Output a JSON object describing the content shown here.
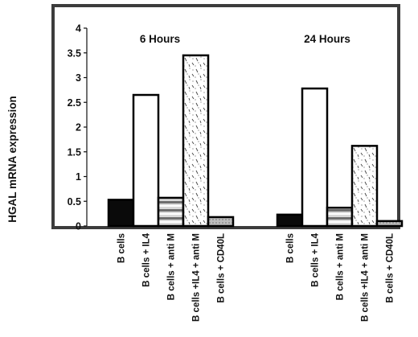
{
  "chart_data": {
    "type": "bar",
    "ylabel": "HGAL  mRNA expression",
    "ylim": [
      0,
      4
    ],
    "yticks": [
      "0",
      "0.5",
      "1",
      "1.5",
      "2",
      "2.5",
      "3",
      "3.5",
      "4"
    ],
    "groups": [
      {
        "title": "6  Hours",
        "bars": [
          {
            "category": "B  cells",
            "value": 0.53,
            "pattern": "solid-black"
          },
          {
            "category": "B  cells  + IL4",
            "value": 2.65,
            "pattern": "white"
          },
          {
            "category": "B  cells + anti  M",
            "value": 0.57,
            "pattern": "striped-gray"
          },
          {
            "category": "B  cells +IL4 + anti  M",
            "value": 3.45,
            "pattern": "dotted-dashes"
          },
          {
            "category": "B  cells + CD40L",
            "value": 0.18,
            "pattern": "light-gray"
          }
        ]
      },
      {
        "title": "24  Hours",
        "bars": [
          {
            "category": "B  cells",
            "value": 0.23,
            "pattern": "solid-black"
          },
          {
            "category": "B  cells  + IL4",
            "value": 2.78,
            "pattern": "white"
          },
          {
            "category": "B  cells + anti  M",
            "value": 0.37,
            "pattern": "striped-gray"
          },
          {
            "category": "B  cells +IL4 + anti  M",
            "value": 1.62,
            "pattern": "dotted-dashes"
          },
          {
            "category": "B  cells + CD40L",
            "value": 0.1,
            "pattern": "light-gray"
          }
        ]
      }
    ]
  }
}
